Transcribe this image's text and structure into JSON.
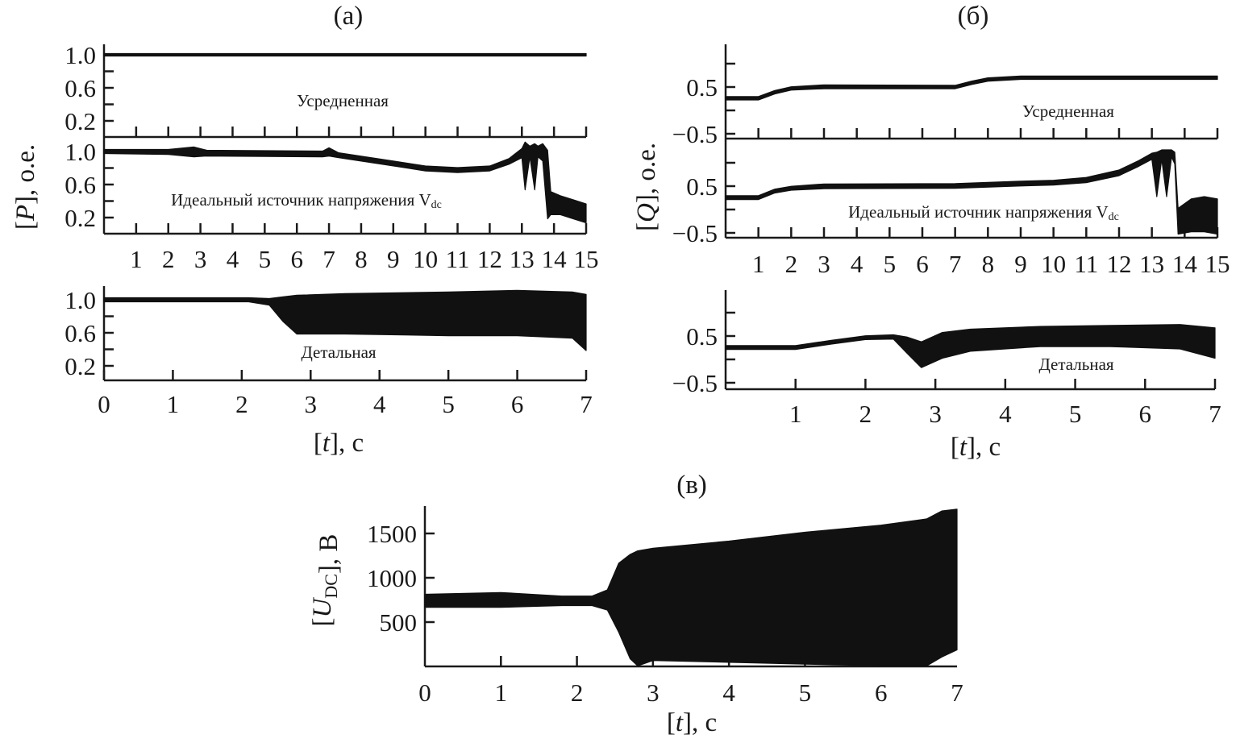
{
  "chart_data": [
    {
      "id": "a",
      "type": "line",
      "title": "(а)",
      "ylabel": "[P], о.е.",
      "ylabel_var": "P",
      "ylabel_unit": ", о.е.",
      "xlabel": "[t], c",
      "xlabel_var": "t",
      "xlabel_unit": ", c",
      "subplots": [
        {
          "key": "averaged",
          "annotation": "Усредненная",
          "xlim": [
            0,
            15
          ],
          "ylim": [
            0,
            1.15
          ],
          "yticks": [
            1.0,
            0.6,
            0.2
          ],
          "yticklabels": [
            "1.0",
            "0.6",
            "0.2"
          ],
          "yminor": [
            0.8,
            0.4
          ],
          "xticks": [
            1,
            2,
            3,
            4,
            5,
            6,
            7,
            8,
            9,
            10,
            11,
            12,
            13,
            14,
            15
          ],
          "xticklabels": [],
          "series": {
            "x": [
              0,
              15
            ],
            "lo": [
              1.0,
              1.0
            ],
            "hi": [
              1.0,
              1.0
            ]
          }
        },
        {
          "key": "ideal",
          "annotation": "Идеальный источник напряжения V",
          "annotation_sub": "dc",
          "xlim": [
            0,
            15
          ],
          "ylim": [
            0,
            1.15
          ],
          "yticks": [
            1.0,
            0.6,
            0.2
          ],
          "yticklabels": [
            "1.0",
            "0.6",
            "0.2"
          ],
          "yminor": [
            0.8,
            0.4
          ],
          "xticks": [
            1,
            2,
            3,
            4,
            5,
            6,
            7,
            8,
            9,
            10,
            11,
            12,
            13,
            14,
            15
          ],
          "xticklabels": [
            "1",
            "2",
            "3",
            "4",
            "5",
            "6",
            "7",
            "8",
            "9",
            "10",
            "11",
            "12",
            "13",
            "14",
            "15"
          ],
          "series": {
            "x": [
              0,
              2,
              2.8,
              3.2,
              6.8,
              7.0,
              7.3,
              9,
              10,
              11,
              12,
              12.6,
              13.0,
              13.1,
              13.25,
              13.4,
              13.5,
              13.65,
              13.8,
              13.9,
              14.2,
              14.6,
              15
            ],
            "lo": [
              0.99,
              0.98,
              0.95,
              0.96,
              0.95,
              0.96,
              0.94,
              0.84,
              0.78,
              0.76,
              0.78,
              0.86,
              0.94,
              0.55,
              0.95,
              0.55,
              0.95,
              0.9,
              0.2,
              0.25,
              0.25,
              0.2,
              0.15
            ],
            "hi": [
              1.01,
              1.01,
              1.04,
              1.0,
              0.99,
              1.03,
              0.97,
              0.87,
              0.81,
              0.79,
              0.81,
              0.9,
              1.02,
              1.1,
              1.05,
              1.08,
              1.05,
              1.08,
              1.0,
              0.5,
              0.45,
              0.4,
              0.35
            ]
          }
        },
        {
          "key": "detailed",
          "annotation": "Детальная",
          "xlim": [
            0,
            7
          ],
          "ylim": [
            0,
            1.15
          ],
          "yticks": [
            1.0,
            0.6,
            0.2
          ],
          "yticklabels": [
            "1.0",
            "0.6",
            "0.2"
          ],
          "yminor": [
            0.8,
            0.4
          ],
          "xticks": [
            0,
            1,
            2,
            3,
            4,
            5,
            6,
            7
          ],
          "xticklabels": [
            "0",
            "1",
            "2",
            "3",
            "4",
            "5",
            "6",
            "7"
          ],
          "series": {
            "x": [
              0,
              2.1,
              2.4,
              2.6,
              2.8,
              3.5,
              5,
              6,
              6.8,
              7
            ],
            "lo": [
              0.99,
              0.99,
              0.95,
              0.75,
              0.6,
              0.6,
              0.58,
              0.58,
              0.55,
              0.4
            ],
            "hi": [
              1.01,
              1.01,
              1.0,
              1.02,
              1.04,
              1.06,
              1.08,
              1.1,
              1.08,
              1.05
            ]
          }
        }
      ]
    },
    {
      "id": "b",
      "type": "line",
      "title": "(б)",
      "ylabel": "[Q], о.е.",
      "ylabel_var": "Q",
      "ylabel_unit": ", о.е.",
      "xlabel": "[t], c",
      "xlabel_var": "t",
      "xlabel_unit": ", c",
      "subplots": [
        {
          "key": "averaged",
          "annotation": "Усредненная",
          "xlim": [
            0,
            15
          ],
          "ylim": [
            -0.6,
            1.5
          ],
          "yticks": [
            0.5,
            -0.5
          ],
          "yticklabels": [
            "0.5",
            "−0.5"
          ],
          "yminor": [
            1.0,
            0.0
          ],
          "xticks": [
            1,
            2,
            3,
            4,
            5,
            6,
            7,
            8,
            9,
            10,
            11,
            12,
            13,
            14,
            15
          ],
          "xticklabels": [],
          "series": {
            "x": [
              0,
              1,
              1.5,
              2,
              3,
              7,
              7.5,
              8,
              9,
              15
            ],
            "lo": [
              0.25,
              0.25,
              0.38,
              0.46,
              0.49,
              0.49,
              0.58,
              0.65,
              0.69,
              0.69
            ],
            "hi": [
              0.27,
              0.27,
              0.4,
              0.48,
              0.52,
              0.51,
              0.6,
              0.67,
              0.71,
              0.71
            ]
          }
        },
        {
          "key": "ideal",
          "annotation": "Идеальный источник напряжения V",
          "annotation_sub": "dc",
          "xlim": [
            0,
            15
          ],
          "ylim": [
            -0.6,
            1.5
          ],
          "yticks": [
            0.5,
            -0.5
          ],
          "yticklabels": [
            "0.5",
            "−0.5"
          ],
          "yminor": [
            1.0,
            0.0
          ],
          "xticks": [
            1,
            2,
            3,
            4,
            5,
            6,
            7,
            8,
            9,
            10,
            11,
            12,
            13,
            14,
            15
          ],
          "xticklabels": [
            "1",
            "2",
            "3",
            "4",
            "5",
            "6",
            "7",
            "8",
            "9",
            "10",
            "11",
            "12",
            "13",
            "14",
            "15"
          ],
          "series": {
            "x": [
              0,
              1,
              1.5,
              2,
              3,
              7,
              9,
              10,
              11,
              12,
              12.6,
              13.0,
              13.15,
              13.3,
              13.45,
              13.6,
              13.7,
              13.8,
              14.2,
              14.6,
              15
            ],
            "lo": [
              0.24,
              0.24,
              0.38,
              0.44,
              0.47,
              0.48,
              0.53,
              0.55,
              0.6,
              0.75,
              0.95,
              1.1,
              0.3,
              1.1,
              0.3,
              1.15,
              1.0,
              -0.5,
              -0.45,
              -0.45,
              -0.5
            ],
            "hi": [
              0.27,
              0.27,
              0.41,
              0.47,
              0.52,
              0.53,
              0.58,
              0.6,
              0.66,
              0.82,
              1.02,
              1.18,
              1.2,
              1.25,
              1.25,
              1.25,
              1.2,
              0.0,
              0.2,
              0.25,
              0.2
            ]
          }
        },
        {
          "key": "detailed",
          "annotation": "Детальная",
          "xlim": [
            0,
            7
          ],
          "ylim": [
            -0.6,
            1.5
          ],
          "yticks": [
            0.5,
            -0.5
          ],
          "yticklabels": [
            "0.5",
            "−0.5"
          ],
          "yminor": [
            1.0,
            0.0
          ],
          "xticks": [
            1,
            2,
            3,
            4,
            5,
            6,
            7
          ],
          "xticklabels": [
            "1",
            "2",
            "3",
            "4",
            "5",
            "6",
            "7"
          ],
          "series": {
            "x": [
              0,
              1,
              1.5,
              2,
              2.4,
              2.6,
              2.8,
              3.1,
              3.5,
              4.5,
              5.5,
              6.5,
              7
            ],
            "lo": [
              0.24,
              0.24,
              0.35,
              0.45,
              0.46,
              0.15,
              -0.15,
              0.05,
              0.2,
              0.3,
              0.3,
              0.25,
              0.05
            ],
            "hi": [
              0.27,
              0.27,
              0.38,
              0.48,
              0.5,
              0.45,
              0.35,
              0.55,
              0.62,
              0.68,
              0.7,
              0.72,
              0.65
            ]
          }
        }
      ]
    },
    {
      "id": "v",
      "type": "line",
      "title": "(в)",
      "ylabel": "[U_DC], В",
      "ylabel_var": "U",
      "ylabel_sub": "DC",
      "ylabel_unit": ", В",
      "xlabel": "[t], c",
      "xlabel_var": "t",
      "xlabel_unit": ", c",
      "subplots": [
        {
          "key": "udc",
          "xlim": [
            0,
            7
          ],
          "ylim": [
            0,
            1800
          ],
          "yticks": [
            1500,
            1000,
            500
          ],
          "yticklabels": [
            "1500",
            "1000",
            "500"
          ],
          "yminor": [],
          "xticks": [
            1,
            2,
            3,
            4,
            5,
            6
          ],
          "xticklabels": [
            "0",
            "1",
            "2",
            "3",
            "4",
            "5",
            "6",
            "7"
          ],
          "xticklabel_values": [
            0,
            1,
            2,
            3,
            4,
            5,
            6,
            7
          ],
          "series": {
            "x": [
              0,
              1,
              1.8,
              2.2,
              2.4,
              2.55,
              2.7,
              2.8,
              3.0,
              4,
              5,
              6,
              6.6,
              6.8,
              7
            ],
            "lo": [
              680,
              680,
              700,
              700,
              650,
              400,
              100,
              20,
              80,
              60,
              40,
              20,
              20,
              120,
              200
            ],
            "hi": [
              800,
              820,
              780,
              780,
              850,
              1150,
              1250,
              1290,
              1320,
              1400,
              1500,
              1580,
              1650,
              1740,
              1760
            ]
          }
        }
      ]
    }
  ]
}
